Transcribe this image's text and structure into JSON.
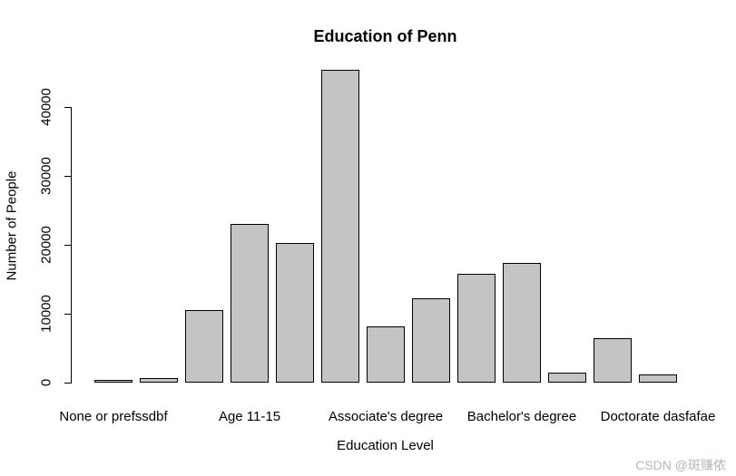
{
  "watermark": "CSDN @斑赚侬",
  "chart_data": {
    "type": "bar",
    "title": "Education of Penn",
    "xlabel": "Education Level",
    "ylabel": "Number of People",
    "ylim": [
      0,
      40000
    ],
    "yticks": [
      0,
      10000,
      20000,
      30000,
      40000
    ],
    "ytick_labels": [
      "0",
      "10000",
      "20000",
      "30000",
      "40000"
    ],
    "n_bars": 13,
    "values": [
      400,
      700,
      10500,
      23000,
      20300,
      45400,
      8100,
      12300,
      15800,
      17400,
      1500,
      6500,
      1200
    ],
    "x_axis_labels": [
      {
        "text": "None or prefssdbf",
        "bar_index": 0
      },
      {
        "text": "Age 11-15",
        "bar_index": 3
      },
      {
        "text": "Associate's degree",
        "bar_index": 6
      },
      {
        "text": "Bachelor's degree",
        "bar_index": 9
      },
      {
        "text": "Doctorate dasfafae",
        "bar_index": 12
      }
    ],
    "bar_fill_color": "#c4c4c4",
    "bar_border_color": "#000000",
    "grid": false,
    "legend": null
  }
}
